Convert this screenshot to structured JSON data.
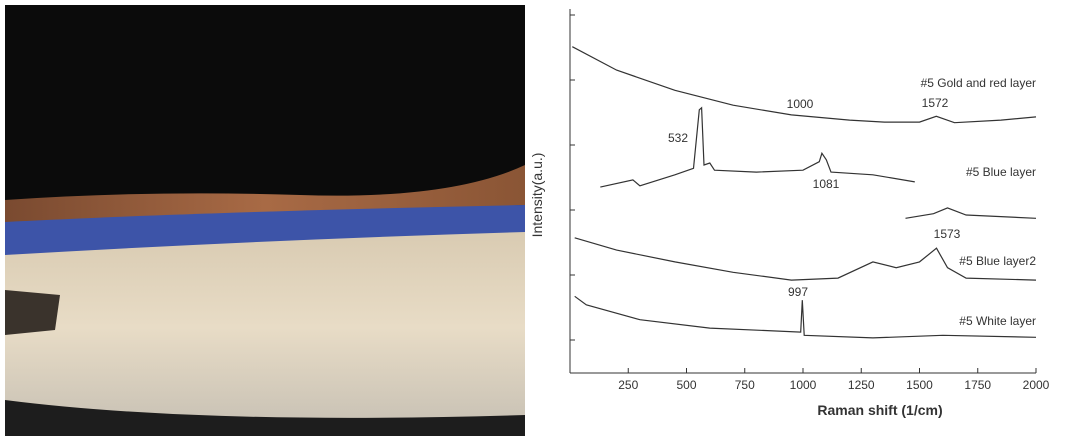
{
  "chart_data": {
    "type": "line",
    "x_label": "Raman shift (1/cm)",
    "y_label": "Intensity(a.u.)",
    "xlim": [
      0,
      2000
    ],
    "xticks": [
      250,
      500,
      750,
      1000,
      1250,
      1500,
      1750,
      2000
    ],
    "ylim": [
      0,
      5.6
    ],
    "series": [
      {
        "name": "#5 Gold and red layer",
        "color": "#333333",
        "x": [
          10,
          200,
          450,
          700,
          950,
          1200,
          1350,
          1500,
          1572,
          1650,
          1850,
          2000
        ],
        "values": [
          5.02,
          4.66,
          4.35,
          4.12,
          3.97,
          3.89,
          3.86,
          3.86,
          3.95,
          3.85,
          3.89,
          3.94
        ]
      },
      {
        "name": "#5 Blue layer",
        "color": "#333333",
        "x": [
          130,
          270,
          300,
          450,
          530,
          555,
          565,
          575,
          600,
          620,
          800,
          1000,
          1070,
          1081,
          1100,
          1120,
          1300,
          1480
        ],
        "values": [
          2.86,
          2.97,
          2.88,
          3.05,
          3.15,
          4.05,
          4.08,
          3.2,
          3.23,
          3.12,
          3.09,
          3.12,
          3.25,
          3.38,
          3.28,
          3.09,
          3.05,
          2.94
        ]
      },
      {
        "name": "#5 Blue layer2",
        "color": "#333333",
        "x": [
          20,
          200,
          450,
          700,
          950,
          1150,
          1300,
          1400,
          1500,
          1573,
          1620,
          1700,
          2000,
          null,
          1440,
          1560,
          1620,
          1700,
          2000
        ],
        "values": [
          2.08,
          1.89,
          1.71,
          1.55,
          1.43,
          1.46,
          1.71,
          1.62,
          1.71,
          1.92,
          1.62,
          1.46,
          1.43,
          null,
          2.38,
          2.45,
          2.54,
          2.43,
          2.38
        ]
      },
      {
        "name": "#5 White layer",
        "color": "#333333",
        "x": [
          20,
          70,
          300,
          600,
          990,
          997,
          1005,
          1300,
          1600,
          2000
        ],
        "values": [
          1.18,
          1.05,
          0.82,
          0.69,
          0.63,
          1.12,
          0.58,
          0.54,
          0.58,
          0.55
        ]
      }
    ],
    "annotations": [
      "1000",
      "1572",
      "532",
      "1081",
      "1573",
      "997"
    ]
  }
}
